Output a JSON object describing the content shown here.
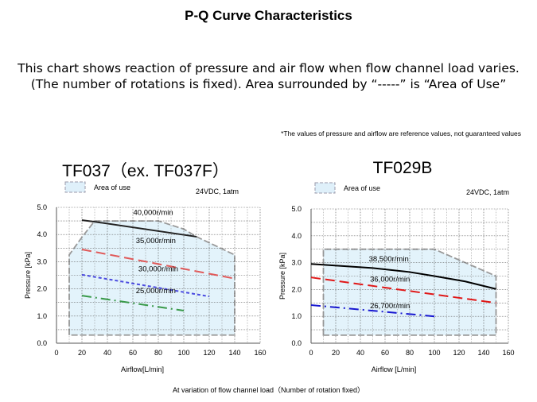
{
  "title": "P-Q Curve Characteristics",
  "description": "This chart shows reaction of pressure and air flow when flow channel load varies. (The number of rotations is fixed). Area surrounded by “-----” is “Area of Use”",
  "note": "*The values of pressure and airflow are reference values, not guaranteed values",
  "footer": "At variation of flow channel load（Number of rotation fixed）",
  "chart_data": [
    {
      "type": "line",
      "title": "TF037（ex. TF037F）",
      "condition": "24VDC, 1atm",
      "legend": "Area of use",
      "xlabel": "Airflow[L/min]",
      "ylabel": "Pressure [kPa]",
      "xlim": [
        0,
        160
      ],
      "ylim": [
        0,
        5
      ],
      "xticks": [
        "0",
        "20",
        "40",
        "60",
        "80",
        "100",
        "120",
        "140",
        "160"
      ],
      "yticks": [
        "0.0",
        "1.0",
        "2.0",
        "3.0",
        "4.0",
        "5.0"
      ],
      "grid": true,
      "area_of_use": [
        [
          10,
          0.3
        ],
        [
          10,
          3.25
        ],
        [
          20,
          3.9
        ],
        [
          30,
          4.5
        ],
        [
          80,
          4.5
        ],
        [
          100,
          4.2
        ],
        [
          110,
          3.92
        ],
        [
          140,
          3.25
        ],
        [
          140,
          0.3
        ]
      ],
      "series": [
        {
          "name": "40,000r/min",
          "color": "#222222",
          "style": "solid",
          "points": [
            [
              20,
              4.53
            ],
            [
              30,
              4.47
            ],
            [
              110,
              3.92
            ]
          ],
          "label_at": [
            76,
            4.72
          ]
        },
        {
          "name": "35,000r/min",
          "color": "#e05a5a",
          "style": "dash",
          "points": [
            [
              20,
              3.45
            ],
            [
              140,
              2.38
            ]
          ],
          "label_at": [
            78,
            3.68
          ]
        },
        {
          "name": "30,000r/min",
          "color": "#4a4ae0",
          "style": "dot",
          "points": [
            [
              20,
              2.52
            ],
            [
              120,
              1.72
            ]
          ],
          "label_at": [
            80,
            2.64
          ]
        },
        {
          "name": "25,000r/min",
          "color": "#3a9a4a",
          "style": "dashdot",
          "points": [
            [
              20,
              1.75
            ],
            [
              100,
              1.2
            ]
          ],
          "label_at": [
            78,
            1.84
          ]
        }
      ]
    },
    {
      "type": "line",
      "title": "TF029B",
      "condition": "24VDC, 1atm",
      "legend": "Area of use",
      "xlabel": "Airflow [L/min]",
      "ylabel": "Pressure [kPa]",
      "xlim": [
        0,
        160
      ],
      "ylim": [
        0,
        5
      ],
      "xticks": [
        "0",
        "20",
        "40",
        "60",
        "80",
        "100",
        "120",
        "140",
        "160"
      ],
      "yticks": [
        "0.0",
        "1.0",
        "2.0",
        "3.0",
        "4.0",
        "5.0"
      ],
      "grid": true,
      "area_of_use": [
        [
          10,
          0.3
        ],
        [
          10,
          3.5
        ],
        [
          100,
          3.5
        ],
        [
          150,
          2.5
        ],
        [
          150,
          0.3
        ]
      ],
      "series": [
        {
          "name": "38,500r/min",
          "color": "#000000",
          "style": "solid",
          "points": [
            [
              0,
              2.95
            ],
            [
              50,
              2.8
            ],
            [
              80,
              2.65
            ],
            [
              100,
              2.5
            ],
            [
              125,
              2.3
            ],
            [
              150,
              2.02
            ]
          ],
          "label_at": [
            63,
            3.05
          ]
        },
        {
          "name": "36,000r/min",
          "color": "#e01818",
          "style": "dash",
          "points": [
            [
              0,
              2.45
            ],
            [
              150,
              1.5
            ]
          ],
          "label_at": [
            64,
            2.3
          ]
        },
        {
          "name": "26,700r/min",
          "color": "#1818d0",
          "style": "dashdot",
          "points": [
            [
              0,
              1.42
            ],
            [
              100,
              1.0
            ]
          ],
          "label_at": [
            64,
            1.3
          ]
        }
      ]
    }
  ]
}
